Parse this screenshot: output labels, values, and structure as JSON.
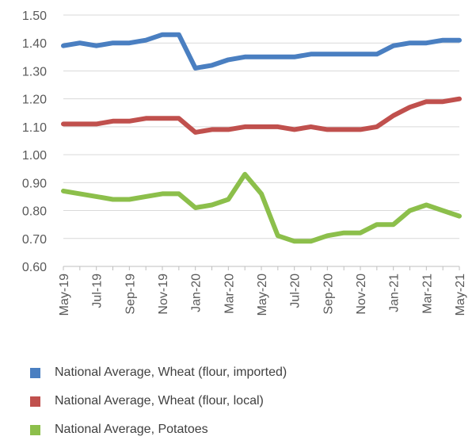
{
  "chart_data": {
    "type": "line",
    "x": [
      "May-19",
      "Jun-19",
      "Jul-19",
      "Aug-19",
      "Sep-19",
      "Oct-19",
      "Nov-19",
      "Dec-19",
      "Jan-20",
      "Feb-20",
      "Mar-20",
      "Apr-20",
      "May-20",
      "Jun-20",
      "Jul-20",
      "Aug-20",
      "Sep-20",
      "Oct-20",
      "Nov-20",
      "Dec-20",
      "Jan-21",
      "Feb-21",
      "Mar-21",
      "Apr-21",
      "May-21"
    ],
    "xtick_labels": [
      "May-19",
      "Jul-19",
      "Sep-19",
      "Nov-19",
      "Jan-20",
      "Mar-20",
      "May-20",
      "Jul-20",
      "Sep-20",
      "Nov-20",
      "Jan-21",
      "Mar-21",
      "May-21"
    ],
    "ylim": [
      0.6,
      1.5
    ],
    "yticks": [
      "0.60",
      "0.70",
      "0.80",
      "0.90",
      "1.00",
      "1.10",
      "1.20",
      "1.30",
      "1.40",
      "1.50"
    ],
    "grid": true,
    "legend": "bottom",
    "series": [
      {
        "name": "National Average, Wheat (flour, imported)",
        "color": "#4a7fc1",
        "values": [
          1.39,
          1.4,
          1.39,
          1.4,
          1.4,
          1.41,
          1.43,
          1.43,
          1.31,
          1.32,
          1.34,
          1.35,
          1.35,
          1.35,
          1.35,
          1.36,
          1.36,
          1.36,
          1.36,
          1.36,
          1.39,
          1.4,
          1.4,
          1.41,
          1.41
        ]
      },
      {
        "name": "National Average, Wheat (flour, local)",
        "color": "#c0504d",
        "values": [
          1.11,
          1.11,
          1.11,
          1.12,
          1.12,
          1.13,
          1.13,
          1.13,
          1.08,
          1.09,
          1.09,
          1.1,
          1.1,
          1.1,
          1.09,
          1.1,
          1.09,
          1.09,
          1.09,
          1.1,
          1.14,
          1.17,
          1.19,
          1.19,
          1.2
        ]
      },
      {
        "name": "National Average, Potatoes",
        "color": "#8cbf4b",
        "values": [
          0.87,
          0.86,
          0.85,
          0.84,
          0.84,
          0.85,
          0.86,
          0.86,
          0.81,
          0.82,
          0.84,
          0.93,
          0.86,
          0.71,
          0.69,
          0.69,
          0.71,
          0.72,
          0.72,
          0.75,
          0.75,
          0.8,
          0.82,
          0.8,
          0.78
        ]
      }
    ]
  }
}
